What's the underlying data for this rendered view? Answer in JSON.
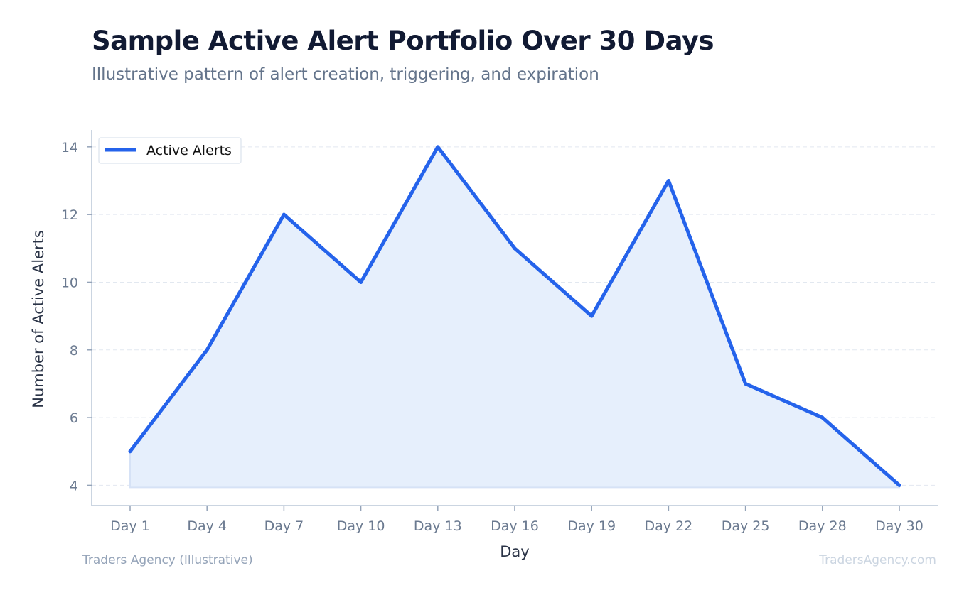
{
  "header": {
    "title": "Sample Active Alert Portfolio Over 30 Days",
    "subtitle": "Illustrative pattern of alert creation, triggering, and expiration"
  },
  "footer": {
    "source": "Traders Agency (Illustrative)",
    "watermark": "TradersAgency.com"
  },
  "chart_data": {
    "type": "area",
    "title": "Sample Active Alert Portfolio Over 30 Days",
    "subtitle": "Illustrative pattern of alert creation, triggering, and expiration",
    "xlabel": "Day",
    "ylabel": "Number of Active Alerts",
    "categories": [
      "Day 1",
      "Day 4",
      "Day 7",
      "Day 10",
      "Day 13",
      "Day 16",
      "Day 19",
      "Day 22",
      "Day 25",
      "Day 28",
      "Day 30"
    ],
    "series": [
      {
        "name": "Active Alerts",
        "values": [
          5,
          8,
          12,
          10,
          14,
          11,
          9,
          13,
          7,
          6,
          4
        ],
        "color": "#2563eb",
        "fill": "#e6effc"
      }
    ],
    "yticks": [
      4,
      6,
      8,
      10,
      12,
      14
    ],
    "ylim": [
      3.4,
      14.5
    ],
    "grid": true,
    "legend": "top-left"
  }
}
